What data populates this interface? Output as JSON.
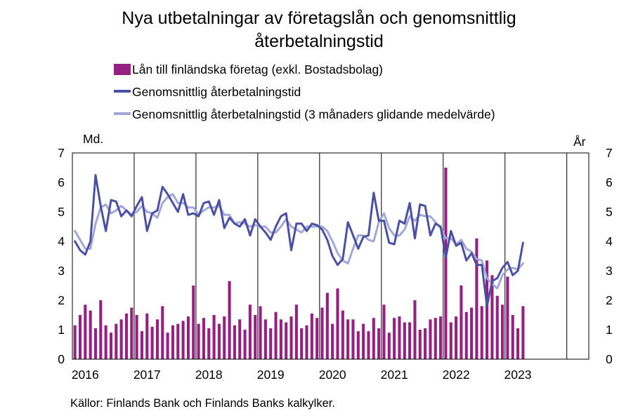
{
  "chart_data": {
    "type": "bar",
    "title_line1": "Nya utbetalningar av företagslån och genomsnittlig",
    "title_line2": "återbetalningstid",
    "left_unit": "Md.",
    "right_unit": "År",
    "source": "Källor: Finlands Bank och Finlands Banks kalkylker.",
    "ylim_left": [
      0,
      7
    ],
    "ylim_right": [
      0,
      7
    ],
    "y_ticks": [
      "0",
      "1",
      "2",
      "3",
      "4",
      "5",
      "6",
      "7"
    ],
    "x_ticks": [
      "2016",
      "2017",
      "2018",
      "2019",
      "2020",
      "2021",
      "2022",
      "2023"
    ],
    "x_start": "2016-01",
    "grid": true,
    "legend_position": "top",
    "colors": {
      "bars": "#962081",
      "line": "#4a50a3",
      "line_avg": "#a3a7d8",
      "grid": "#000000"
    },
    "series": [
      {
        "name": "Lån till finländska företag (exkl. Bostadsbolag)",
        "axis": "left",
        "kind": "bar",
        "values": [
          1.15,
          1.5,
          1.85,
          1.65,
          1.05,
          2.0,
          1.15,
          0.9,
          1.2,
          1.35,
          1.55,
          1.75,
          1.5,
          0.95,
          1.55,
          1.1,
          1.35,
          1.8,
          0.9,
          1.15,
          1.2,
          1.3,
          1.45,
          2.5,
          1.2,
          1.4,
          1.05,
          1.5,
          1.2,
          1.45,
          2.65,
          1.15,
          1.35,
          1.0,
          1.85,
          1.5,
          1.8,
          1.35,
          1.05,
          1.6,
          1.35,
          1.25,
          1.45,
          1.85,
          1.05,
          1.15,
          1.55,
          1.4,
          1.75,
          2.25,
          1.2,
          2.4,
          1.65,
          1.35,
          1.35,
          0.95,
          1.2,
          0.95,
          1.4,
          1.05,
          1.85,
          0.9,
          1.4,
          1.45,
          1.25,
          1.25,
          2.0,
          1.0,
          1.05,
          1.35,
          1.4,
          1.45,
          6.5,
          1.25,
          1.45,
          2.5,
          1.6,
          1.75,
          4.1,
          1.8,
          3.35,
          2.85,
          2.15,
          1.85,
          2.8,
          1.5,
          1.05,
          1.8
        ]
      },
      {
        "name": "Genomsnittlig återbetalningstid",
        "axis": "right",
        "kind": "line",
        "values": [
          4.0,
          3.7,
          3.55,
          4.0,
          6.25,
          5.2,
          4.35,
          5.4,
          5.35,
          4.85,
          5.05,
          4.85,
          5.2,
          5.5,
          4.35,
          4.95,
          5.05,
          5.85,
          5.6,
          5.3,
          5.0,
          5.6,
          4.9,
          4.95,
          4.85,
          5.3,
          5.35,
          4.9,
          5.4,
          4.45,
          4.8,
          4.6,
          4.5,
          4.75,
          4.2,
          4.75,
          4.5,
          4.3,
          4.05,
          4.5,
          4.85,
          4.95,
          3.7,
          4.6,
          4.6,
          4.35,
          4.6,
          4.55,
          4.4,
          4.05,
          3.5,
          3.2,
          3.4,
          4.65,
          4.2,
          3.75,
          4.15,
          4.2,
          5.65,
          4.7,
          4.7,
          3.95,
          3.9,
          4.7,
          4.6,
          5.3,
          4.1,
          5.25,
          5.2,
          4.2,
          4.6,
          4.5,
          3.45,
          4.35,
          3.85,
          3.95,
          3.35,
          3.6,
          3.2,
          3.2,
          1.8,
          2.65,
          2.75,
          3.1,
          3.3,
          2.85,
          3.0,
          3.95
        ]
      },
      {
        "name": "Genomsnittlig återbetalningstid (3 månaders glidande medelvärde)",
        "axis": "right",
        "kind": "line",
        "values": [
          4.35,
          4.05,
          3.75,
          3.75,
          4.6,
          5.15,
          5.25,
          4.95,
          5.05,
          5.2,
          5.05,
          4.9,
          5.0,
          5.2,
          5.0,
          4.95,
          4.8,
          5.3,
          5.5,
          5.6,
          5.3,
          5.3,
          5.15,
          5.15,
          4.9,
          5.05,
          5.15,
          5.15,
          5.2,
          4.9,
          4.9,
          4.6,
          4.65,
          4.6,
          4.5,
          4.55,
          4.5,
          4.5,
          4.3,
          4.3,
          4.5,
          4.75,
          4.5,
          4.4,
          4.3,
          4.5,
          4.5,
          4.5,
          4.5,
          4.35,
          4.0,
          3.6,
          3.35,
          3.25,
          3.75,
          4.2,
          4.2,
          4.05,
          4.0,
          4.65,
          4.95,
          4.45,
          4.2,
          4.2,
          4.4,
          4.85,
          4.7,
          4.9,
          4.85,
          4.85,
          4.65,
          4.45,
          4.1,
          4.1,
          3.9,
          4.05,
          3.75,
          3.65,
          3.4,
          3.35,
          2.75,
          2.55,
          2.4,
          2.85,
          3.05,
          3.1,
          3.05,
          3.25
        ]
      }
    ]
  }
}
